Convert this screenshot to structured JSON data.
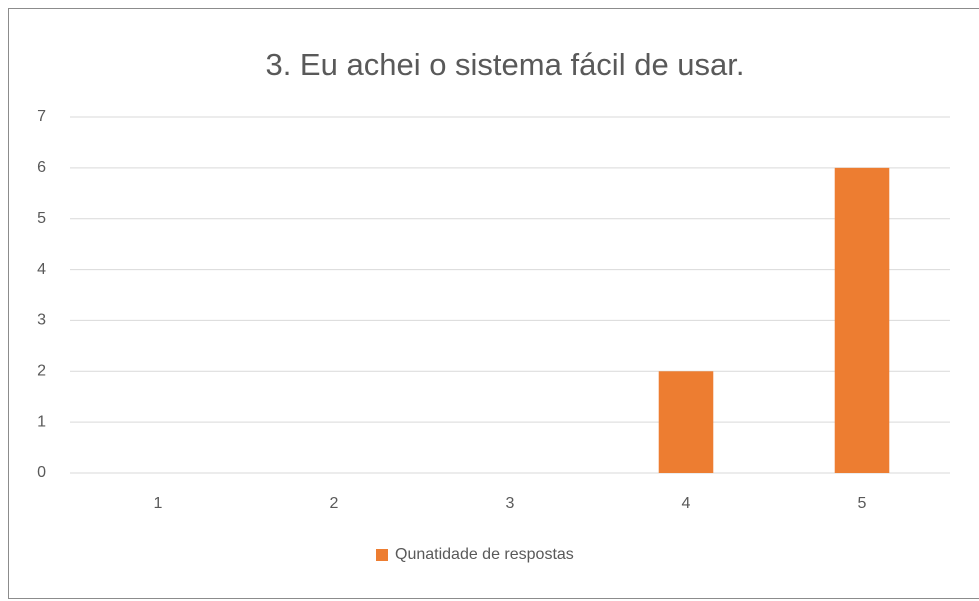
{
  "chart_data": {
    "type": "bar",
    "title": "3. Eu achei o sistema fácil de usar.",
    "categories": [
      "1",
      "2",
      "3",
      "4",
      "5"
    ],
    "series": [
      {
        "name": "Qunatidade de respostas",
        "color": "#ed7d31",
        "values": [
          0,
          0,
          0,
          2,
          6
        ]
      }
    ],
    "ylim": [
      0,
      7
    ],
    "yticks": [
      0,
      1,
      2,
      3,
      4,
      5,
      6,
      7
    ],
    "grid": true,
    "legend": "bottom"
  }
}
